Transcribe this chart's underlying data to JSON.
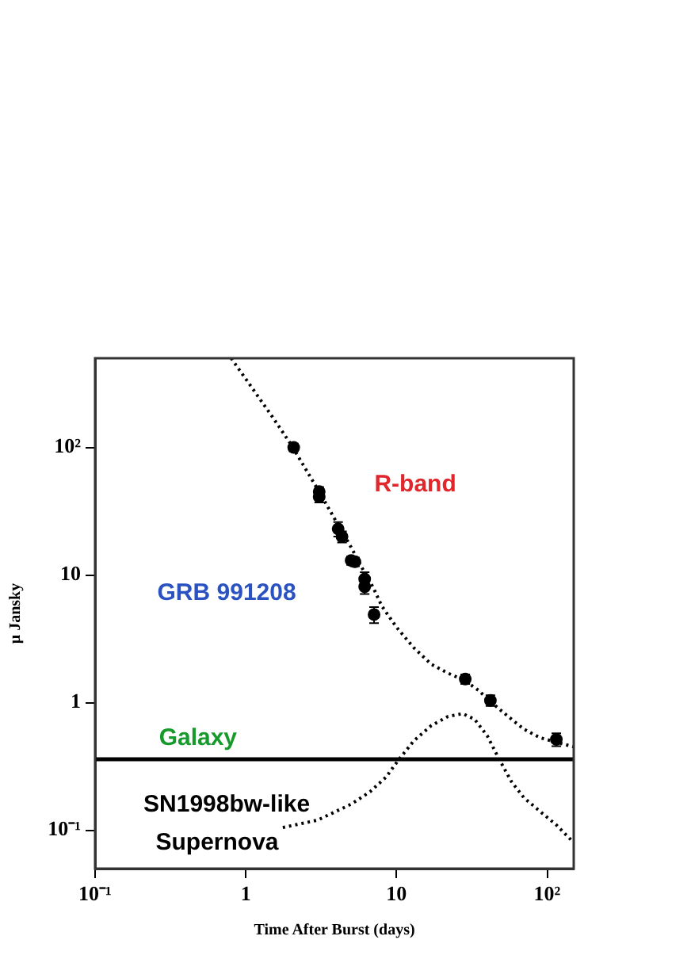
{
  "chart_data": {
    "type": "line",
    "xlabel": "Time After Burst (days)",
    "ylabel": "μ Jansky",
    "log": "xy",
    "grid": false,
    "legend": false,
    "xlim": [
      0.1,
      150
    ],
    "ylim": [
      0.05,
      500
    ],
    "xticks": [
      {
        "value": 0.1,
        "label": "10⁻¹"
      },
      1,
      10,
      {
        "value": 100,
        "label": "10²"
      }
    ],
    "yticks": [
      {
        "value": 0.1,
        "label": "10⁻¹"
      },
      1,
      10,
      {
        "value": 100,
        "label": "10²"
      }
    ],
    "series": [
      {
        "color": "#000000",
        "line_style": "dotted",
        "marker": "none",
        "x": [
          0.8,
          1,
          1.5,
          2,
          3,
          4,
          5,
          6,
          7,
          8,
          10,
          13,
          17,
          22,
          28,
          35,
          42,
          55,
          70,
          90,
          115,
          150
        ],
        "values": [
          500,
          344,
          174,
          105,
          47,
          26,
          16.5,
          11,
          8,
          5.7,
          3.9,
          2.7,
          2.0,
          1.7,
          1.5,
          1.25,
          1.02,
          0.78,
          0.62,
          0.53,
          0.49,
          0.45
        ]
      },
      {
        "type": "line",
        "name": "Galaxy",
        "color": "#000000",
        "line_style": "solid",
        "marker": "none",
        "x": [
          0.1,
          150
        ],
        "values": [
          0.36,
          0.36
        ]
      },
      {
        "type": "line",
        "color": "#000000",
        "line_style": "dotted",
        "marker": "none",
        "x": [
          1.76,
          3,
          5,
          6.67,
          8.5,
          10.4,
          13,
          17,
          22,
          27.5,
          33,
          40,
          48,
          58,
          70,
          90,
          115,
          150
        ],
        "values": [
          0.105,
          0.12,
          0.16,
          0.2,
          0.26,
          0.36,
          0.5,
          0.66,
          0.78,
          0.82,
          0.74,
          0.55,
          0.36,
          0.24,
          0.18,
          0.14,
          0.11,
          0.08
        ]
      },
      {
        "type": "scatter",
        "color": "#000000",
        "marker": "circle",
        "x": [
          2.08,
          3.07,
          3.07,
          4.1,
          4.35,
          5.0,
          5.3,
          6.15,
          6.15,
          7.1,
          28.6,
          42,
          115
        ],
        "values": [
          100,
          45,
          41,
          23,
          20,
          13,
          12.7,
          9.3,
          8.1,
          4.9,
          1.53,
          1.04,
          0.515
        ],
        "errors": [
          7,
          4,
          4,
          3,
          2,
          1,
          1,
          1.2,
          1,
          0.7,
          0.13,
          0.1,
          0.06
        ]
      }
    ],
    "annotations": [
      "R-band",
      "GRB 991208",
      "SN1998bw-like",
      "Supernova"
    ]
  }
}
